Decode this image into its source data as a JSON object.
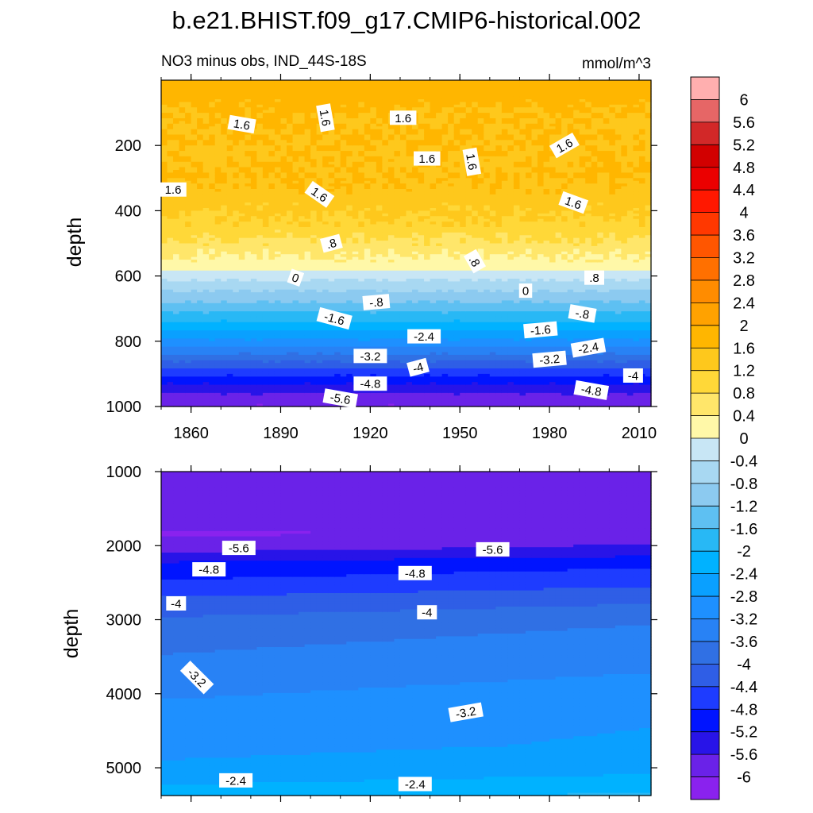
{
  "chart_data": [
    {
      "type": "heatmap",
      "panel": "upper",
      "title": "b.e21.BHIST.f09_g17.CMIP6-historical.002",
      "subtitle_left": "NO3 minus obs, IND_44S-18S",
      "subtitle_right": "mmol/m^3",
      "xlabel": "",
      "ylabel": "depth",
      "xlim": [
        1850,
        2014
      ],
      "ylim": [
        0,
        1000
      ],
      "y_reversed": true,
      "x_ticks": [
        "1860",
        "1890",
        "1920",
        "1950",
        "1980",
        "2010"
      ],
      "y_ticks": [
        "200",
        "400",
        "600",
        "800",
        "1000"
      ],
      "x_tick_values": [
        1860,
        1890,
        1920,
        1950,
        1980,
        2010
      ],
      "y_tick_values": [
        200,
        400,
        600,
        800,
        1000
      ],
      "depth_profile": [
        {
          "depth": 0,
          "value": 1.7
        },
        {
          "depth": 100,
          "value": 1.6
        },
        {
          "depth": 200,
          "value": 1.55
        },
        {
          "depth": 300,
          "value": 1.6
        },
        {
          "depth": 400,
          "value": 1.3
        },
        {
          "depth": 450,
          "value": 1.05
        },
        {
          "depth": 500,
          "value": 0.7
        },
        {
          "depth": 550,
          "value": 0.3
        },
        {
          "depth": 580,
          "value": 0.05
        },
        {
          "depth": 620,
          "value": -0.5
        },
        {
          "depth": 680,
          "value": -1.2
        },
        {
          "depth": 740,
          "value": -2.0
        },
        {
          "depth": 800,
          "value": -2.9
        },
        {
          "depth": 850,
          "value": -3.8
        },
        {
          "depth": 900,
          "value": -4.7
        },
        {
          "depth": 950,
          "value": -5.5
        },
        {
          "depth": 1000,
          "value": -6.0
        }
      ],
      "contour_labels": [
        {
          "year": 1877,
          "depth": 135,
          "text": "1.6",
          "angle": 10
        },
        {
          "year": 1905,
          "depth": 115,
          "text": "1.6",
          "angle": 80
        },
        {
          "year": 1931,
          "depth": 115,
          "text": "1.6",
          "angle": 0
        },
        {
          "year": 1854,
          "depth": 335,
          "text": "1.6",
          "angle": 0
        },
        {
          "year": 1939,
          "depth": 240,
          "text": "1.6",
          "angle": 0
        },
        {
          "year": 1954,
          "depth": 250,
          "text": "1.6",
          "angle": 80
        },
        {
          "year": 1903,
          "depth": 350,
          "text": "1.6",
          "angle": 35
        },
        {
          "year": 1985,
          "depth": 200,
          "text": "1.6",
          "angle": -30
        },
        {
          "year": 1988,
          "depth": 375,
          "text": "1.6",
          "angle": 20
        },
        {
          "year": 1907,
          "depth": 500,
          "text": ".8",
          "angle": -15
        },
        {
          "year": 1955,
          "depth": 555,
          "text": ".8",
          "angle": 60
        },
        {
          "year": 1995,
          "depth": 605,
          "text": ".8",
          "angle": 0
        },
        {
          "year": 1895,
          "depth": 605,
          "text": "0",
          "angle": 20
        },
        {
          "year": 1972,
          "depth": 645,
          "text": "0",
          "angle": 0
        },
        {
          "year": 1922,
          "depth": 680,
          "text": "-.8",
          "angle": -5
        },
        {
          "year": 1908,
          "depth": 730,
          "text": "-1.6",
          "angle": 15
        },
        {
          "year": 1991,
          "depth": 715,
          "text": "-.8",
          "angle": 10
        },
        {
          "year": 1977,
          "depth": 765,
          "text": "-1.6",
          "angle": -5
        },
        {
          "year": 1938,
          "depth": 785,
          "text": "-2.4",
          "angle": 0
        },
        {
          "year": 1993,
          "depth": 820,
          "text": "-2.4",
          "angle": -10
        },
        {
          "year": 1920,
          "depth": 845,
          "text": "-3.2",
          "angle": 0
        },
        {
          "year": 1980,
          "depth": 855,
          "text": "-3.2",
          "angle": -5
        },
        {
          "year": 1936,
          "depth": 880,
          "text": "-4",
          "angle": -15
        },
        {
          "year": 2008,
          "depth": 905,
          "text": "-4",
          "angle": 0
        },
        {
          "year": 1920,
          "depth": 930,
          "text": "-4.8",
          "angle": 0
        },
        {
          "year": 1994,
          "depth": 950,
          "text": "-4.8",
          "angle": 10
        },
        {
          "year": 1910,
          "depth": 975,
          "text": "-5.6",
          "angle": 10
        }
      ]
    },
    {
      "type": "heatmap",
      "panel": "lower",
      "xlabel": "",
      "ylabel": "depth",
      "xlim": [
        1850,
        2014
      ],
      "ylim": [
        1000,
        5375
      ],
      "y_reversed": true,
      "y_ticks": [
        "1000",
        "2000",
        "3000",
        "4000",
        "5000"
      ],
      "y_tick_values": [
        1000,
        2000,
        3000,
        4000,
        5000
      ],
      "depth_profile": [
        {
          "depth": 1000,
          "value": -6.0
        },
        {
          "depth": 1850,
          "value": -5.95
        },
        {
          "depth": 2050,
          "value": -5.6
        },
        {
          "depth": 2250,
          "value": -5.0
        },
        {
          "depth": 2450,
          "value": -4.7
        },
        {
          "depth": 2800,
          "value": -4.1
        },
        {
          "depth": 3100,
          "value": -3.7
        },
        {
          "depth": 3600,
          "value": -3.4
        },
        {
          "depth": 4200,
          "value": -3.0
        },
        {
          "depth": 4700,
          "value": -2.85
        },
        {
          "depth": 5100,
          "value": -2.5
        },
        {
          "depth": 5375,
          "value": -2.05
        }
      ],
      "contour_labels": [
        {
          "year": 1876,
          "depth": 2030,
          "text": "-5.6",
          "angle": 0
        },
        {
          "year": 1961,
          "depth": 2050,
          "text": "-5.6",
          "angle": 0
        },
        {
          "year": 1866,
          "depth": 2320,
          "text": "-4.8",
          "angle": 0
        },
        {
          "year": 1935,
          "depth": 2370,
          "text": "-4.8",
          "angle": 0
        },
        {
          "year": 1855,
          "depth": 2780,
          "text": "-4",
          "angle": 0
        },
        {
          "year": 1939,
          "depth": 2900,
          "text": "-4",
          "angle": 0
        },
        {
          "year": 1862,
          "depth": 3780,
          "text": "-3.2",
          "angle": 45
        },
        {
          "year": 1952,
          "depth": 4250,
          "text": "-3.2",
          "angle": -10
        },
        {
          "year": 1875,
          "depth": 5170,
          "text": "-2.4",
          "angle": 0
        },
        {
          "year": 1935,
          "depth": 5220,
          "text": "-2.4",
          "angle": 0
        }
      ]
    }
  ],
  "colorbar": {
    "levels": [
      "6",
      "5.6",
      "5.2",
      "4.8",
      "4.4",
      "4",
      "3.6",
      "3.2",
      "2.8",
      "2.4",
      "2",
      "1.6",
      "1.2",
      "0.8",
      "0.4",
      "0",
      "-0.4",
      "-0.8",
      "-1.2",
      "-1.6",
      "-2",
      "-2.4",
      "-2.8",
      "-3.2",
      "-3.6",
      "-4",
      "-4.4",
      "-4.8",
      "-5.2",
      "-5.6",
      "-6"
    ],
    "colors": [
      "#ffafaf",
      "#e66666",
      "#d22828",
      "#d20000",
      "#eb0000",
      "#ff1800",
      "#ff3800",
      "#ff5600",
      "#ff7000",
      "#ff8c00",
      "#ffa200",
      "#ffb600",
      "#fec81c",
      "#ffd838",
      "#ffe66a",
      "#fff8a8",
      "#c8e6f5",
      "#a8d8f2",
      "#8ccaf0",
      "#5ec0f2",
      "#28b8f5",
      "#00b2ff",
      "#0aa0ff",
      "#1e90ff",
      "#2882f5",
      "#3070e4",
      "#2f5ee6",
      "#1e3cff",
      "#0014ff",
      "#2814e8",
      "#6a22e8",
      "#8a22ee"
    ]
  }
}
